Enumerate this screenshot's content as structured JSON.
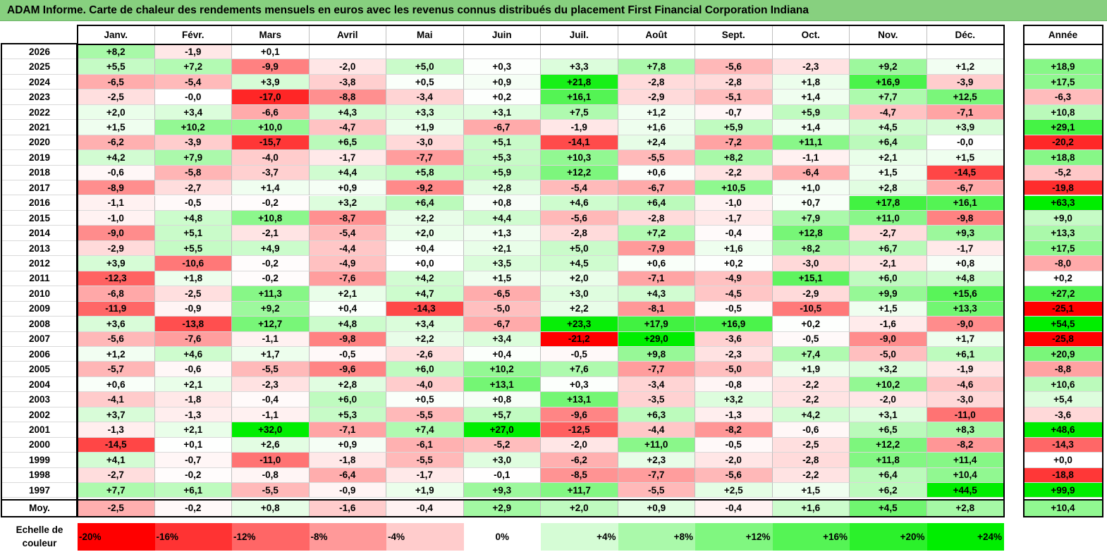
{
  "title": "ADAM Informe. Carte de chaleur des rendements mensuels en euros avec les revenus connus distribués du placement First Financial Corporation Indiana",
  "chart_data": {
    "type": "heatmap",
    "title": "ADAM Informe. Carte de chaleur des rendements mensuels en euros avec les revenus connus distribués du placement First Financial Corporation Indiana",
    "columns": [
      "Janv.",
      "Févr.",
      "Mars",
      "Avril",
      "Mai",
      "Juin",
      "Juil.",
      "Août",
      "Sept.",
      "Oct.",
      "Nov.",
      "Déc."
    ],
    "annual_header": "Année",
    "rows": [
      {
        "year": "2026",
        "values": [
          "+8,2",
          "-1,9",
          "+0,1",
          "",
          "",
          "",
          "",
          "",
          "",
          "",
          "",
          ""
        ],
        "annual": ""
      },
      {
        "year": "2025",
        "values": [
          "+5,5",
          "+7,2",
          "-9,9",
          "-2,0",
          "+5,0",
          "+0,3",
          "+3,3",
          "+7,8",
          "-5,6",
          "-2,3",
          "+9,2",
          "+1,2"
        ],
        "annual": "+18,9"
      },
      {
        "year": "2024",
        "values": [
          "-6,5",
          "-5,4",
          "+3,9",
          "-3,8",
          "+0,5",
          "+0,9",
          "+21,8",
          "-2,8",
          "-2,8",
          "+1,8",
          "+16,9",
          "-3,9"
        ],
        "annual": "+17,5"
      },
      {
        "year": "2023",
        "values": [
          "-2,5",
          "-0,0",
          "-17,0",
          "-8,8",
          "-3,4",
          "+0,2",
          "+16,1",
          "-2,9",
          "-5,1",
          "+1,4",
          "+7,7",
          "+12,5"
        ],
        "annual": "-6,3"
      },
      {
        "year": "2022",
        "values": [
          "+2,0",
          "+3,4",
          "-6,6",
          "+4,3",
          "+3,3",
          "+3,1",
          "+7,5",
          "+1,2",
          "-0,7",
          "+5,9",
          "-4,7",
          "-7,1"
        ],
        "annual": "+10,8"
      },
      {
        "year": "2021",
        "values": [
          "+1,5",
          "+10,2",
          "+10,0",
          "-4,7",
          "+1,9",
          "-6,7",
          "-1,9",
          "+1,6",
          "+5,9",
          "+1,4",
          "+4,5",
          "+3,9"
        ],
        "annual": "+29,1"
      },
      {
        "year": "2020",
        "values": [
          "-6,2",
          "-3,9",
          "-15,7",
          "+6,5",
          "-3,0",
          "+5,1",
          "-14,1",
          "+2,4",
          "-7,2",
          "+11,1",
          "+6,4",
          "-0,0"
        ],
        "annual": "-20,2"
      },
      {
        "year": "2019",
        "values": [
          "+4,2",
          "+7,9",
          "-4,0",
          "-1,7",
          "-7,7",
          "+5,3",
          "+10,3",
          "-5,5",
          "+8,2",
          "-1,1",
          "+2,1",
          "+1,5"
        ],
        "annual": "+18,8"
      },
      {
        "year": "2018",
        "values": [
          "-0,6",
          "-5,8",
          "-3,7",
          "+4,4",
          "+5,8",
          "+5,9",
          "+12,2",
          "+0,6",
          "-2,2",
          "-6,4",
          "+1,5",
          "-14,5"
        ],
        "annual": "-5,2"
      },
      {
        "year": "2017",
        "values": [
          "-8,9",
          "-2,7",
          "+1,4",
          "+0,9",
          "-9,2",
          "+2,8",
          "-5,4",
          "-6,7",
          "+10,5",
          "+1,0",
          "+2,8",
          "-6,7"
        ],
        "annual": "-19,8"
      },
      {
        "year": "2016",
        "values": [
          "-1,1",
          "-0,5",
          "-0,2",
          "+3,2",
          "+6,4",
          "+0,8",
          "+4,6",
          "+6,4",
          "-1,0",
          "+0,7",
          "+17,8",
          "+16,1"
        ],
        "annual": "+63,3"
      },
      {
        "year": "2015",
        "values": [
          "-1,0",
          "+4,8",
          "+10,8",
          "-8,7",
          "+2,2",
          "+4,4",
          "-5,6",
          "-2,8",
          "-1,7",
          "+7,9",
          "+11,0",
          "-9,8"
        ],
        "annual": "+9,0"
      },
      {
        "year": "2014",
        "values": [
          "-9,0",
          "+5,1",
          "-2,1",
          "-5,4",
          "+2,0",
          "+1,3",
          "-2,8",
          "+7,2",
          "-0,4",
          "+12,8",
          "-2,7",
          "+9,3"
        ],
        "annual": "+13,3"
      },
      {
        "year": "2013",
        "values": [
          "-2,9",
          "+5,5",
          "+4,9",
          "-4,4",
          "+0,4",
          "+2,1",
          "+5,0",
          "-7,9",
          "+1,6",
          "+8,2",
          "+6,7",
          "-1,7"
        ],
        "annual": "+17,5"
      },
      {
        "year": "2012",
        "values": [
          "+3,9",
          "-10,6",
          "-0,2",
          "-4,9",
          "+0,0",
          "+3,5",
          "+4,5",
          "+0,6",
          "+0,2",
          "-3,0",
          "-2,1",
          "+0,8"
        ],
        "annual": "-8,0"
      },
      {
        "year": "2011",
        "values": [
          "-12,3",
          "+1,8",
          "-0,2",
          "-7,6",
          "+4,2",
          "+1,5",
          "+2,0",
          "-7,1",
          "-4,9",
          "+15,1",
          "+6,0",
          "+4,8"
        ],
        "annual": "+0,2"
      },
      {
        "year": "2010",
        "values": [
          "-6,8",
          "-2,5",
          "+11,3",
          "+2,1",
          "+4,7",
          "-6,5",
          "+3,0",
          "+4,3",
          "-4,5",
          "-2,9",
          "+9,9",
          "+15,6"
        ],
        "annual": "+27,2"
      },
      {
        "year": "2009",
        "values": [
          "-11,9",
          "-0,9",
          "+9,2",
          "+0,4",
          "-14,3",
          "-5,0",
          "+2,2",
          "-8,1",
          "-0,5",
          "-10,5",
          "+1,5",
          "+13,3"
        ],
        "annual": "-25,1"
      },
      {
        "year": "2008",
        "values": [
          "+3,6",
          "-13,8",
          "+12,7",
          "+4,8",
          "+3,4",
          "-6,7",
          "+23,3",
          "+17,9",
          "+16,9",
          "+0,2",
          "-1,6",
          "-9,0"
        ],
        "annual": "+54,5"
      },
      {
        "year": "2007",
        "values": [
          "-5,6",
          "-7,6",
          "-1,1",
          "-9,8",
          "+2,2",
          "+3,4",
          "-21,2",
          "+29,0",
          "-3,6",
          "-0,5",
          "-9,0",
          "+1,7"
        ],
        "annual": "-25,8"
      },
      {
        "year": "2006",
        "values": [
          "+1,2",
          "+4,6",
          "+1,7",
          "-0,5",
          "-2,6",
          "+0,4",
          "-0,5",
          "+9,8",
          "-2,3",
          "+7,4",
          "-5,0",
          "+6,1"
        ],
        "annual": "+20,9"
      },
      {
        "year": "2005",
        "values": [
          "-5,7",
          "-0,6",
          "-5,5",
          "-9,6",
          "+6,0",
          "+10,2",
          "+7,6",
          "-7,7",
          "-5,0",
          "+1,9",
          "+3,2",
          "-1,9"
        ],
        "annual": "-8,8"
      },
      {
        "year": "2004",
        "values": [
          "+0,6",
          "+2,1",
          "-2,3",
          "+2,8",
          "-4,0",
          "+13,1",
          "+0,3",
          "-3,4",
          "-0,8",
          "-2,2",
          "+10,2",
          "-4,6"
        ],
        "annual": "+10,6"
      },
      {
        "year": "2003",
        "values": [
          "-4,1",
          "-1,8",
          "-0,4",
          "+6,0",
          "+0,5",
          "+0,8",
          "+13,1",
          "-3,5",
          "+3,2",
          "-2,2",
          "-2,0",
          "-3,0"
        ],
        "annual": "+5,4"
      },
      {
        "year": "2002",
        "values": [
          "+3,7",
          "-1,3",
          "-1,1",
          "+5,3",
          "-5,5",
          "+5,7",
          "-9,6",
          "+6,3",
          "-1,3",
          "+4,2",
          "+3,1",
          "-11,0"
        ],
        "annual": "-3,6"
      },
      {
        "year": "2001",
        "values": [
          "-1,3",
          "+2,1",
          "+32,0",
          "-7,1",
          "+7,4",
          "+27,0",
          "-12,5",
          "-4,4",
          "-8,2",
          "-0,6",
          "+6,5",
          "+8,3"
        ],
        "annual": "+48,6"
      },
      {
        "year": "2000",
        "values": [
          "-14,5",
          "+0,1",
          "+2,6",
          "+0,9",
          "-6,1",
          "-5,2",
          "-2,0",
          "+11,0",
          "-0,5",
          "-2,5",
          "+12,2",
          "-8,2"
        ],
        "annual": "-14,3"
      },
      {
        "year": "1999",
        "values": [
          "+4,1",
          "-0,7",
          "-11,0",
          "-1,8",
          "-5,5",
          "+3,0",
          "-6,2",
          "+2,3",
          "-2,0",
          "-2,8",
          "+11,8",
          "+11,4"
        ],
        "annual": "+0,0"
      },
      {
        "year": "1998",
        "values": [
          "-2,7",
          "-0,2",
          "-0,8",
          "-6,4",
          "-1,7",
          "-0,1",
          "-8,5",
          "-7,7",
          "-5,6",
          "-2,2",
          "+6,4",
          "+10,4"
        ],
        "annual": "-18,8"
      },
      {
        "year": "1997",
        "values": [
          "+7,7",
          "+6,1",
          "-5,5",
          "-0,9",
          "+1,9",
          "+9,3",
          "+11,7",
          "-5,5",
          "+2,5",
          "+1,5",
          "+6,2",
          "+44,5"
        ],
        "annual": "+99,9"
      }
    ],
    "average": {
      "label": "Moy.",
      "values": [
        "-2,5",
        "-0,2",
        "+0,8",
        "-1,6",
        "-0,4",
        "+2,9",
        "+2,0",
        "+0,9",
        "-0,4",
        "+1,6",
        "+4,5",
        "+2,8"
      ],
      "annual": "+10,4"
    },
    "color_scale": {
      "label": "Echelle de couleur",
      "stops": [
        "-20%",
        "-16%",
        "-12%",
        "-8%",
        "-4%",
        "0%",
        "+4%",
        "+8%",
        "+12%",
        "+16%",
        "+20%",
        "+24%"
      ],
      "negative_color": "#ff0000",
      "neutral_color": "#ffffff",
      "positive_color": "#00ee00"
    }
  }
}
